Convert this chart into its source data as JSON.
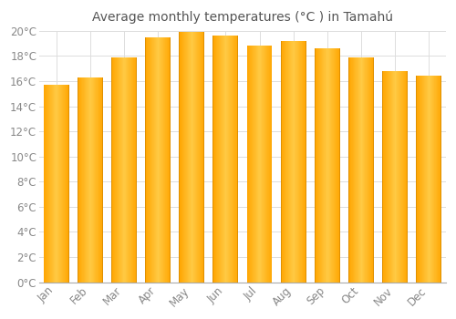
{
  "title": "Average monthly temperatures (°C ) in Tamahú",
  "months": [
    "Jan",
    "Feb",
    "Mar",
    "Apr",
    "May",
    "Jun",
    "Jul",
    "Aug",
    "Sep",
    "Oct",
    "Nov",
    "Dec"
  ],
  "temperatures": [
    15.7,
    16.3,
    17.9,
    19.5,
    19.9,
    19.6,
    18.8,
    19.2,
    18.6,
    17.9,
    16.8,
    16.4
  ],
  "bar_color_main": "#FFA500",
  "bar_color_light": "#FFD050",
  "bar_color_edge": "#E09000",
  "background_color": "#FFFFFF",
  "grid_color": "#DDDDDD",
  "text_color": "#888888",
  "title_color": "#555555",
  "ylim": [
    0,
    20
  ],
  "ytick_step": 2,
  "title_fontsize": 10,
  "tick_fontsize": 8.5,
  "bar_width": 0.75
}
